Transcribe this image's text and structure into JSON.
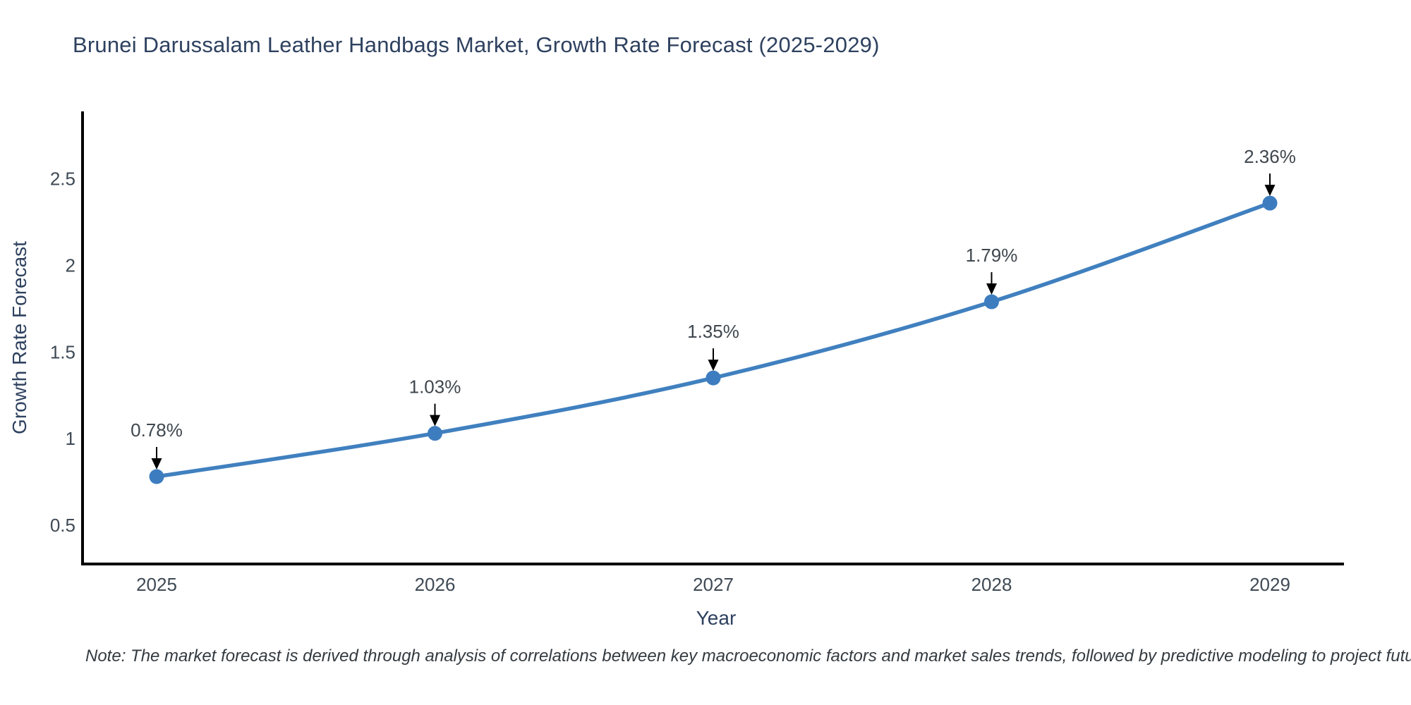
{
  "title": "Brunei Darussalam Leather Handbags Market, Growth Rate Forecast (2025-2029)",
  "note": "Note: The market forecast is derived through analysis of correlations between key macroeconomic factors and market sales trends, followed by predictive modeling to project future sales",
  "chart_data": {
    "type": "line",
    "title": "Brunei Darussalam Leather Handbags Market, Growth Rate Forecast (2025-2029)",
    "xlabel": "Year",
    "ylabel": "Growth Rate Forecast",
    "categories": [
      "2025",
      "2026",
      "2027",
      "2028",
      "2029"
    ],
    "values": [
      0.78,
      1.03,
      1.35,
      1.79,
      2.36
    ],
    "point_labels": [
      "0.78%",
      "1.03%",
      "1.35%",
      "1.79%",
      "2.36%"
    ],
    "yticks": [
      0.5,
      1,
      1.5,
      2,
      2.5
    ],
    "ylim": [
      0.275,
      2.89
    ],
    "grid": false,
    "legend": false,
    "line_shape": "spline",
    "line_color": "#4080bf",
    "marker_color": "#3d7dbf",
    "axis_color": "#000000",
    "annotation_arrow_color": "#000000"
  }
}
